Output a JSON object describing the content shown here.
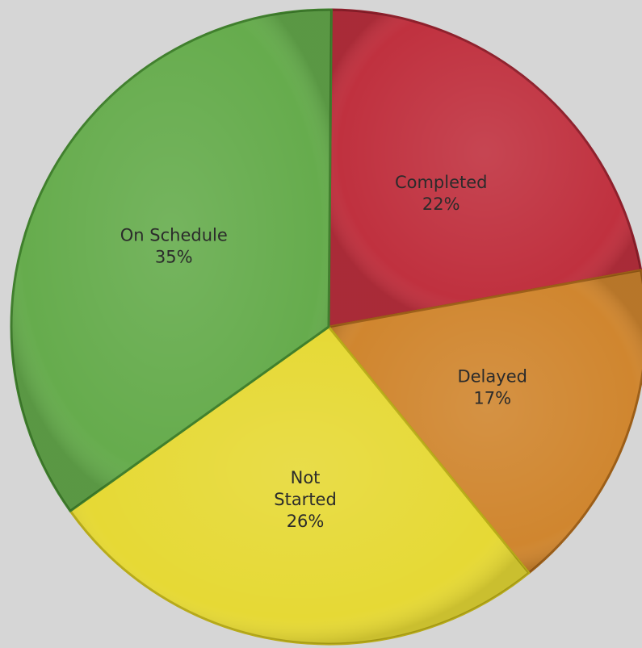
{
  "chart_data": {
    "type": "pie",
    "unit": "%",
    "slices": [
      {
        "label": "Completed",
        "label_lines": [
          "Completed"
        ],
        "value": 22,
        "value_label": "22%",
        "color": "#c0313f",
        "edge": "#8e1f2b"
      },
      {
        "label": "Delayed",
        "label_lines": [
          "Delayed"
        ],
        "value": 17,
        "value_label": "17%",
        "color": "#d0862f",
        "edge": "#9c5e17"
      },
      {
        "label": "Not Started",
        "label_lines": [
          "Not",
          "Started"
        ],
        "value": 26,
        "value_label": "26%",
        "color": "#e6d935",
        "edge": "#b8ab17"
      },
      {
        "label": "On Schedule",
        "label_lines": [
          "On Schedule"
        ],
        "value": 35,
        "value_label": "35%",
        "color": "#66ac4d",
        "edge": "#3f7f2c"
      }
    ]
  }
}
